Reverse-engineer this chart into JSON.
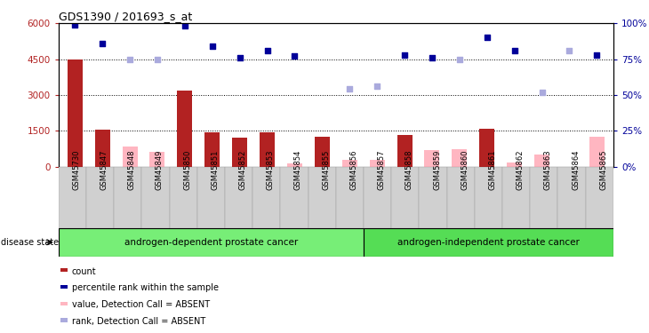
{
  "title": "GDS1390 / 201693_s_at",
  "samples": [
    "GSM45730",
    "GSM45847",
    "GSM45848",
    "GSM45849",
    "GSM45850",
    "GSM45851",
    "GSM45852",
    "GSM45853",
    "GSM45854",
    "GSM45855",
    "GSM45856",
    "GSM45857",
    "GSM45858",
    "GSM45859",
    "GSM45860",
    "GSM45861",
    "GSM45862",
    "GSM45863",
    "GSM45864",
    "GSM45865"
  ],
  "count_present": [
    4500,
    1550,
    null,
    null,
    3200,
    1450,
    1200,
    1420,
    null,
    1230,
    null,
    null,
    1310,
    null,
    null,
    1600,
    null,
    null,
    null,
    null
  ],
  "count_absent": [
    null,
    null,
    820,
    600,
    null,
    null,
    null,
    null,
    130,
    null,
    270,
    280,
    null,
    680,
    720,
    null,
    170,
    500,
    null,
    1250
  ],
  "rank_present": [
    99,
    86,
    null,
    null,
    98,
    84,
    76,
    81,
    77,
    null,
    null,
    null,
    78,
    76,
    null,
    90,
    81,
    null,
    null,
    78
  ],
  "rank_absent": [
    null,
    null,
    75,
    75,
    null,
    null,
    null,
    null,
    null,
    null,
    54,
    56,
    null,
    null,
    75,
    null,
    null,
    52,
    81,
    null
  ],
  "group1_count": 11,
  "group2_count": 9,
  "group1_label": "androgen-dependent prostate cancer",
  "group2_label": "androgen-independent prostate cancer",
  "ylim_left": [
    0,
    6000
  ],
  "ylim_right": [
    0,
    100
  ],
  "yticks_left": [
    0,
    1500,
    3000,
    4500,
    6000
  ],
  "yticks_right": [
    0,
    25,
    50,
    75,
    100
  ],
  "ytick_labels_left": [
    "0",
    "1500",
    "3000",
    "4500",
    "6000"
  ],
  "ytick_labels_right": [
    "0%",
    "25%",
    "50%",
    "75%",
    "100%"
  ],
  "color_count_present": "#b22222",
  "color_count_absent": "#ffb6c1",
  "color_rank_present": "#000099",
  "color_rank_absent": "#aaaadd",
  "color_group1": "#77ee77",
  "color_group2": "#55dd55",
  "legend_items": [
    {
      "label": "count",
      "color": "#b22222"
    },
    {
      "label": "percentile rank within the sample",
      "color": "#000099"
    },
    {
      "label": "value, Detection Call = ABSENT",
      "color": "#ffb6c1"
    },
    {
      "label": "rank, Detection Call = ABSENT",
      "color": "#aaaadd"
    }
  ]
}
